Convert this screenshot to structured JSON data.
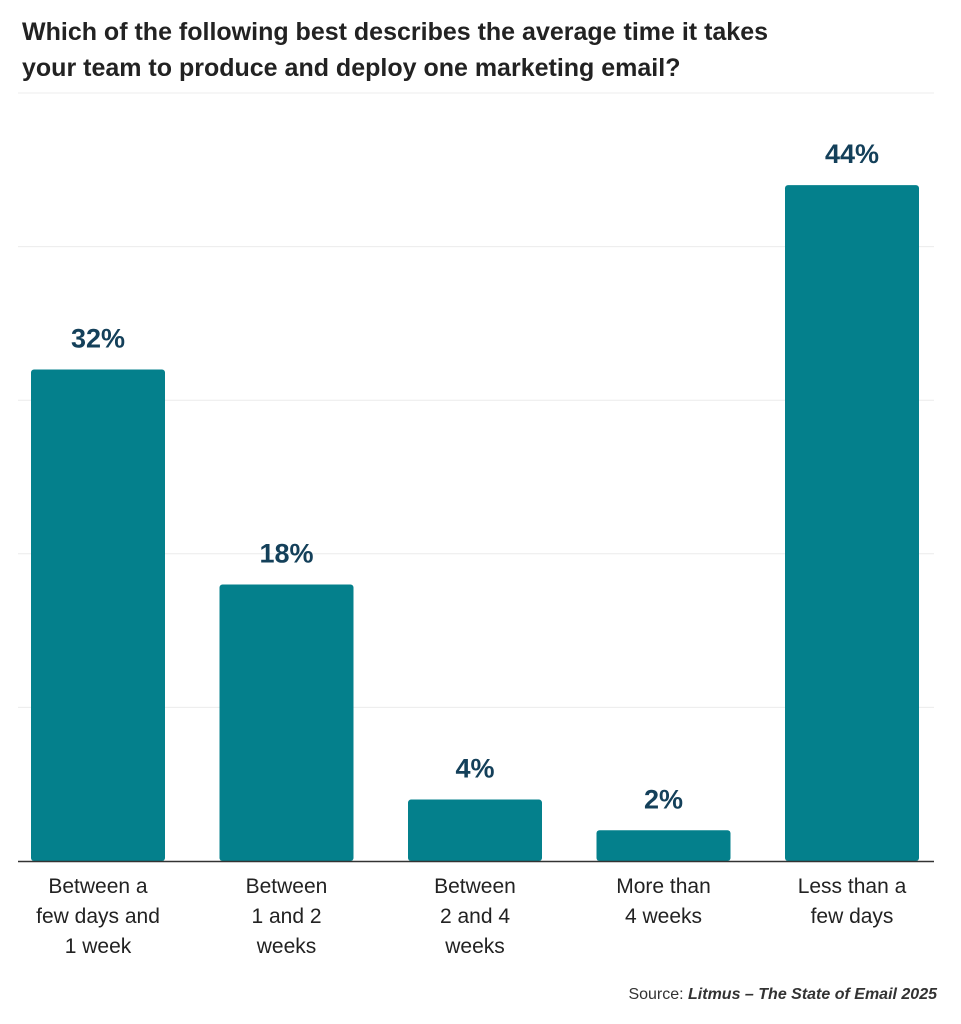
{
  "title_lines": [
    "Which of the following best describes the average time it takes",
    "your team to produce and deploy one marketing email?"
  ],
  "source": {
    "prefix": "Source:",
    "name": "Litmus – The State of Email 2025"
  },
  "colors": {
    "bar": "#04808c",
    "value_label": "#14405a",
    "gridline": "#ececec",
    "axis": "#333333"
  },
  "chart_data": {
    "type": "bar",
    "title": "Which of the following best describes the average time it takes your team to produce and deploy one marketing email?",
    "xlabel": "",
    "ylabel": "",
    "ylim": [
      0,
      50
    ],
    "grid": true,
    "categories": [
      [
        "Between a",
        "few days and",
        "1 week"
      ],
      [
        "Between",
        "1 and 2",
        "weeks"
      ],
      [
        "Between",
        "2 and 4",
        "weeks"
      ],
      [
        "More than",
        "4 weeks"
      ],
      [
        "Less than a",
        "few days"
      ]
    ],
    "values": [
      32,
      18,
      4,
      2,
      44
    ],
    "value_labels": [
      "32%",
      "18%",
      "4%",
      "2%",
      "44%"
    ]
  }
}
